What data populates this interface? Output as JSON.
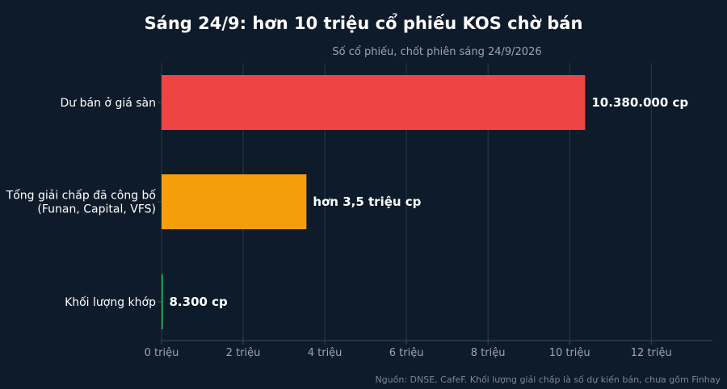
{
  "chart_data": {
    "type": "bar",
    "orientation": "horizontal",
    "title": "Sáng 24/9: hơn 10 triệu cổ phiếu KOS chờ bán",
    "subtitle": "Số cổ phiếu, chốt phiên sáng 24/9/2026",
    "source": "Nguồn: DNSE, CafeF. Khối lượng giải chấp là số dự kiến bán, chưa gồm Finhay",
    "categories": [
      [
        "Dư bán ở giá sàn"
      ],
      [
        "Tổng giải chấp đã công bố",
        "(Funan, Capital, VFS)"
      ],
      [
        "Khối lượng khớp"
      ]
    ],
    "values": [
      10380000,
      3550000,
      8300
    ],
    "data_labels": [
      "10.380.000 cp",
      "hơn 3,5 triệu cp",
      "8.300 cp"
    ],
    "colors": [
      "#ef4444",
      "#f59e0b",
      "#22c55e"
    ],
    "xlim": [
      0,
      13500000
    ],
    "xticks": [
      0,
      2000000,
      4000000,
      6000000,
      8000000,
      10000000,
      12000000
    ],
    "xtick_labels": [
      "0 triệu",
      "2 triệu",
      "4 triệu",
      "6 triệu",
      "8 triệu",
      "10 triệu",
      "12 triệu"
    ],
    "grid": true,
    "legend": false
  }
}
